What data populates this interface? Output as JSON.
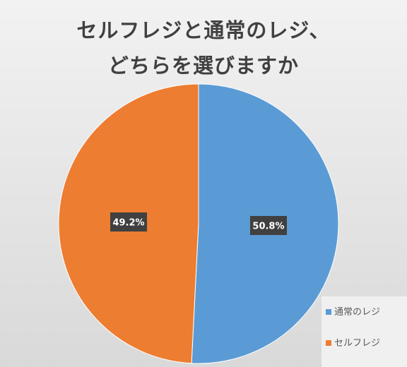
{
  "chart_data": {
    "type": "pie",
    "title_lines": [
      "セルフレジと通常のレジ、",
      "どちらを選びますか"
    ],
    "categories": [
      "通常のレジ",
      "セルフレジ"
    ],
    "values": [
      50.8,
      49.2
    ],
    "data_labels": [
      "50.8%",
      "49.2%"
    ],
    "colors": [
      "#5b9bd5",
      "#ed7d31"
    ],
    "legend_position": "bottom-right",
    "start": "top",
    "direction": "clockwise"
  }
}
